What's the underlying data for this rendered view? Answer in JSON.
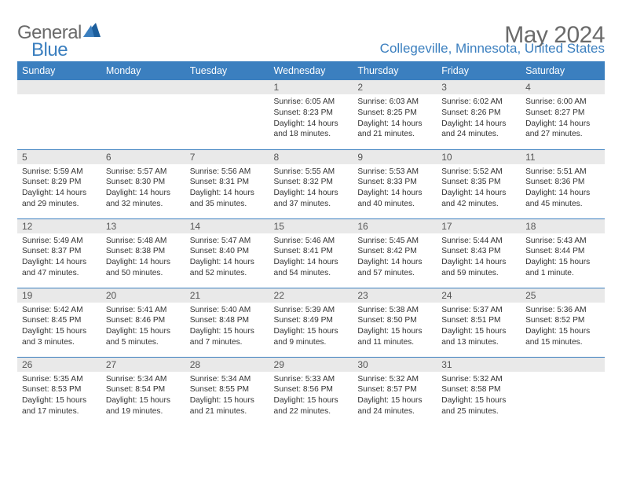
{
  "logo": {
    "word1": "General",
    "word2": "Blue"
  },
  "title": "May 2024",
  "location": "Collegeville, Minnesota, United States",
  "colors": {
    "accent": "#3b7fbf",
    "header_text": "#ffffff",
    "daynum_bg": "#e9e9e9",
    "text": "#333333",
    "muted": "#6a6a6a",
    "background": "#ffffff",
    "row_border": "#3b7fbf"
  },
  "day_headers": [
    "Sunday",
    "Monday",
    "Tuesday",
    "Wednesday",
    "Thursday",
    "Friday",
    "Saturday"
  ],
  "weeks": [
    [
      {
        "n": "",
        "sr": "",
        "ss": "",
        "dl": ""
      },
      {
        "n": "",
        "sr": "",
        "ss": "",
        "dl": ""
      },
      {
        "n": "",
        "sr": "",
        "ss": "",
        "dl": ""
      },
      {
        "n": "1",
        "sr": "Sunrise: 6:05 AM",
        "ss": "Sunset: 8:23 PM",
        "dl": "Daylight: 14 hours and 18 minutes."
      },
      {
        "n": "2",
        "sr": "Sunrise: 6:03 AM",
        "ss": "Sunset: 8:25 PM",
        "dl": "Daylight: 14 hours and 21 minutes."
      },
      {
        "n": "3",
        "sr": "Sunrise: 6:02 AM",
        "ss": "Sunset: 8:26 PM",
        "dl": "Daylight: 14 hours and 24 minutes."
      },
      {
        "n": "4",
        "sr": "Sunrise: 6:00 AM",
        "ss": "Sunset: 8:27 PM",
        "dl": "Daylight: 14 hours and 27 minutes."
      }
    ],
    [
      {
        "n": "5",
        "sr": "Sunrise: 5:59 AM",
        "ss": "Sunset: 8:29 PM",
        "dl": "Daylight: 14 hours and 29 minutes."
      },
      {
        "n": "6",
        "sr": "Sunrise: 5:57 AM",
        "ss": "Sunset: 8:30 PM",
        "dl": "Daylight: 14 hours and 32 minutes."
      },
      {
        "n": "7",
        "sr": "Sunrise: 5:56 AM",
        "ss": "Sunset: 8:31 PM",
        "dl": "Daylight: 14 hours and 35 minutes."
      },
      {
        "n": "8",
        "sr": "Sunrise: 5:55 AM",
        "ss": "Sunset: 8:32 PM",
        "dl": "Daylight: 14 hours and 37 minutes."
      },
      {
        "n": "9",
        "sr": "Sunrise: 5:53 AM",
        "ss": "Sunset: 8:33 PM",
        "dl": "Daylight: 14 hours and 40 minutes."
      },
      {
        "n": "10",
        "sr": "Sunrise: 5:52 AM",
        "ss": "Sunset: 8:35 PM",
        "dl": "Daylight: 14 hours and 42 minutes."
      },
      {
        "n": "11",
        "sr": "Sunrise: 5:51 AM",
        "ss": "Sunset: 8:36 PM",
        "dl": "Daylight: 14 hours and 45 minutes."
      }
    ],
    [
      {
        "n": "12",
        "sr": "Sunrise: 5:49 AM",
        "ss": "Sunset: 8:37 PM",
        "dl": "Daylight: 14 hours and 47 minutes."
      },
      {
        "n": "13",
        "sr": "Sunrise: 5:48 AM",
        "ss": "Sunset: 8:38 PM",
        "dl": "Daylight: 14 hours and 50 minutes."
      },
      {
        "n": "14",
        "sr": "Sunrise: 5:47 AM",
        "ss": "Sunset: 8:40 PM",
        "dl": "Daylight: 14 hours and 52 minutes."
      },
      {
        "n": "15",
        "sr": "Sunrise: 5:46 AM",
        "ss": "Sunset: 8:41 PM",
        "dl": "Daylight: 14 hours and 54 minutes."
      },
      {
        "n": "16",
        "sr": "Sunrise: 5:45 AM",
        "ss": "Sunset: 8:42 PM",
        "dl": "Daylight: 14 hours and 57 minutes."
      },
      {
        "n": "17",
        "sr": "Sunrise: 5:44 AM",
        "ss": "Sunset: 8:43 PM",
        "dl": "Daylight: 14 hours and 59 minutes."
      },
      {
        "n": "18",
        "sr": "Sunrise: 5:43 AM",
        "ss": "Sunset: 8:44 PM",
        "dl": "Daylight: 15 hours and 1 minute."
      }
    ],
    [
      {
        "n": "19",
        "sr": "Sunrise: 5:42 AM",
        "ss": "Sunset: 8:45 PM",
        "dl": "Daylight: 15 hours and 3 minutes."
      },
      {
        "n": "20",
        "sr": "Sunrise: 5:41 AM",
        "ss": "Sunset: 8:46 PM",
        "dl": "Daylight: 15 hours and 5 minutes."
      },
      {
        "n": "21",
        "sr": "Sunrise: 5:40 AM",
        "ss": "Sunset: 8:48 PM",
        "dl": "Daylight: 15 hours and 7 minutes."
      },
      {
        "n": "22",
        "sr": "Sunrise: 5:39 AM",
        "ss": "Sunset: 8:49 PM",
        "dl": "Daylight: 15 hours and 9 minutes."
      },
      {
        "n": "23",
        "sr": "Sunrise: 5:38 AM",
        "ss": "Sunset: 8:50 PM",
        "dl": "Daylight: 15 hours and 11 minutes."
      },
      {
        "n": "24",
        "sr": "Sunrise: 5:37 AM",
        "ss": "Sunset: 8:51 PM",
        "dl": "Daylight: 15 hours and 13 minutes."
      },
      {
        "n": "25",
        "sr": "Sunrise: 5:36 AM",
        "ss": "Sunset: 8:52 PM",
        "dl": "Daylight: 15 hours and 15 minutes."
      }
    ],
    [
      {
        "n": "26",
        "sr": "Sunrise: 5:35 AM",
        "ss": "Sunset: 8:53 PM",
        "dl": "Daylight: 15 hours and 17 minutes."
      },
      {
        "n": "27",
        "sr": "Sunrise: 5:34 AM",
        "ss": "Sunset: 8:54 PM",
        "dl": "Daylight: 15 hours and 19 minutes."
      },
      {
        "n": "28",
        "sr": "Sunrise: 5:34 AM",
        "ss": "Sunset: 8:55 PM",
        "dl": "Daylight: 15 hours and 21 minutes."
      },
      {
        "n": "29",
        "sr": "Sunrise: 5:33 AM",
        "ss": "Sunset: 8:56 PM",
        "dl": "Daylight: 15 hours and 22 minutes."
      },
      {
        "n": "30",
        "sr": "Sunrise: 5:32 AM",
        "ss": "Sunset: 8:57 PM",
        "dl": "Daylight: 15 hours and 24 minutes."
      },
      {
        "n": "31",
        "sr": "Sunrise: 5:32 AM",
        "ss": "Sunset: 8:58 PM",
        "dl": "Daylight: 15 hours and 25 minutes."
      },
      {
        "n": "",
        "sr": "",
        "ss": "",
        "dl": ""
      }
    ]
  ]
}
